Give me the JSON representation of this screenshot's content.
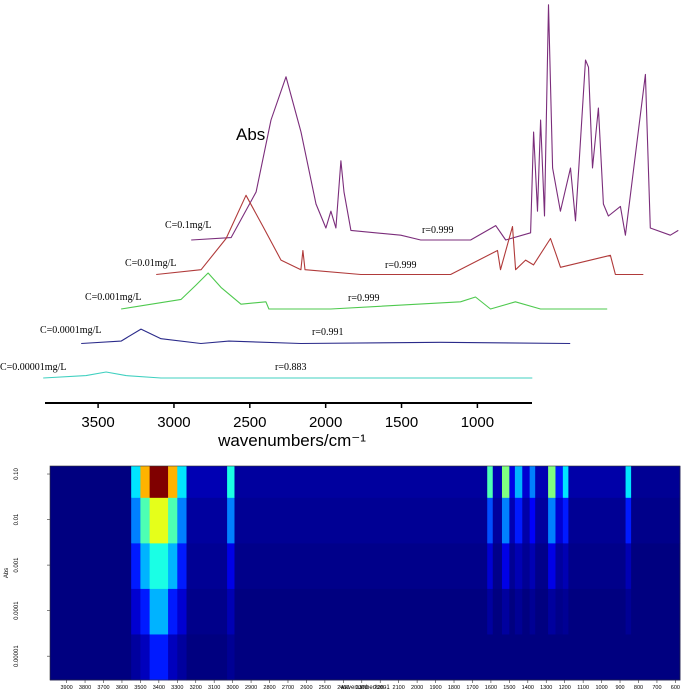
{
  "chart_data": [
    {
      "type": "waterfall",
      "axis_label": "Abs",
      "xlabel": "wavenumbers/cm⁻¹",
      "xlim": [
        3850,
        640
      ],
      "xticks": [
        3500,
        3000,
        2500,
        2000,
        1500,
        1000
      ],
      "ylim": [
        0,
        1
      ],
      "series": [
        {
          "name": "C=0.1mg/L",
          "annotation": "r=0.999",
          "color": "#7b2d7b",
          "x": [
            3862,
            3599,
            3434,
            3336,
            3237,
            3138,
            3039,
            2974,
            2941,
            2908,
            2875,
            2855,
            2809,
            2480,
            2349,
            2020,
            1855,
            1789,
            1625,
            1605,
            1579,
            1559,
            1533,
            1507,
            1480,
            1428,
            1362,
            1329,
            1263,
            1243,
            1217,
            1178,
            1145,
            1112,
            1033,
            1000,
            868,
            836,
            704,
            651
          ],
          "values": [
            0,
            0.01,
            0.2,
            0.5,
            0.68,
            0.45,
            0.15,
            0.05,
            0.12,
            0.05,
            0.33,
            0.2,
            0.04,
            0.02,
            0,
            0,
            0.06,
            0,
            0.03,
            0.45,
            0.12,
            0.5,
            0.1,
            0.98,
            0.3,
            0.12,
            0.3,
            0.08,
            0.75,
            0.72,
            0.3,
            0.55,
            0.15,
            0.1,
            0.14,
            0.02,
            0.69,
            0.05,
            0.02,
            0.04
          ]
        },
        {
          "name": "C=0.01mg/L",
          "annotation": "r=0.999",
          "color": "#b03a3a",
          "x": [
            3849,
            3553,
            3388,
            3257,
            3145,
            3026,
            2895,
            2882,
            2868,
            2500,
            1908,
            1599,
            1579,
            1500,
            1480,
            1414,
            1362,
            1250,
            1211,
            1184,
            855,
            822,
            638
          ],
          "values": [
            0,
            0.02,
            0.15,
            0.33,
            0.2,
            0.06,
            0.02,
            0.1,
            0.02,
            0,
            0,
            0.1,
            0.02,
            0.2,
            0.02,
            0.06,
            0.04,
            0.15,
            0.08,
            0.03,
            0.08,
            0,
            0
          ]
        },
        {
          "name": "C=0.001mg/L",
          "annotation": "r=0.999",
          "color": "#4ec94e",
          "x": [
            3836,
            3441,
            3342,
            3263,
            3178,
            3046,
            2882,
            2862,
            2454,
            1599,
            1500,
            1401,
            1237,
            1072,
            632
          ],
          "values": [
            0,
            0.04,
            0.1,
            0.15,
            0.09,
            0.02,
            0.03,
            0,
            0,
            0.03,
            0.05,
            0,
            0.03,
            0,
            0
          ]
        },
        {
          "name": "C=0.0001mg/L",
          "annotation": "r=0.991",
          "color": "#2a2a8a",
          "x": [
            3855,
            3592,
            3461,
            3329,
            3066,
            2882,
            2408,
            1487,
            632
          ],
          "values": [
            0,
            0.01,
            0.06,
            0.02,
            0,
            0.01,
            0,
            0.005,
            0
          ]
        },
        {
          "name": "C=0.00001mg/L",
          "annotation": "r=0.883",
          "color": "#40d0c0",
          "x": [
            3862,
            3579,
            3447,
            3316,
            3086,
            638
          ],
          "values": [
            0,
            0.01,
            0.025,
            0.01,
            0,
            0
          ]
        }
      ]
    },
    {
      "type": "heatmap",
      "ylabel": "Abs",
      "xlabel": "wavenumber/cm-1",
      "colormap": "jet",
      "xlim": [
        3990,
        575
      ],
      "xticks": [
        3900,
        3800,
        3700,
        3600,
        3500,
        3400,
        3300,
        3200,
        3100,
        3000,
        2900,
        2800,
        2700,
        2600,
        2500,
        2400,
        2300,
        2200,
        2100,
        2000,
        1900,
        1800,
        1700,
        1600,
        1500,
        1400,
        1300,
        1200,
        1100,
        1000,
        900,
        800,
        700,
        600
      ],
      "ylim": [
        3e-06,
        0.15
      ],
      "log_y": true,
      "yticks": [
        {
          "value": 0.1,
          "label": "0.10"
        },
        0.01,
        0.001,
        0.0001,
        1e-05
      ],
      "zlim": [
        0,
        1
      ],
      "bins": [
        3990,
        3550,
        3500,
        3450,
        3350,
        3300,
        3250,
        3030,
        2990,
        1620,
        1590,
        1540,
        1500,
        1470,
        1430,
        1390,
        1360,
        1290,
        1250,
        1210,
        1180,
        870,
        840,
        575
      ],
      "ybins": [
        0.15,
        0.03,
        0.003,
        0.0003,
        3e-05,
        3e-06
      ],
      "z": [
        [
          0,
          0.35,
          0.7,
          1.0,
          0.7,
          0.35,
          0.05,
          0.4,
          0.03,
          0.45,
          0.05,
          0.5,
          0.1,
          0.3,
          0.08,
          0.25,
          0.05,
          0.5,
          0.15,
          0.35,
          0.04,
          0.35,
          0.02
        ],
        [
          0,
          0.25,
          0.45,
          0.6,
          0.45,
          0.25,
          0.03,
          0.25,
          0.02,
          0.2,
          0.03,
          0.25,
          0.05,
          0.15,
          0.04,
          0.12,
          0.03,
          0.25,
          0.08,
          0.15,
          0.02,
          0.15,
          0.01
        ],
        [
          0,
          0.15,
          0.3,
          0.4,
          0.3,
          0.15,
          0.02,
          0.1,
          0.01,
          0.08,
          0.01,
          0.1,
          0.02,
          0.05,
          0.02,
          0.05,
          0.01,
          0.1,
          0.03,
          0.05,
          0.01,
          0.05,
          0
        ],
        [
          0,
          0.08,
          0.15,
          0.3,
          0.15,
          0.08,
          0.01,
          0.05,
          0,
          0.03,
          0,
          0.03,
          0,
          0.02,
          0,
          0.02,
          0,
          0.03,
          0.01,
          0.02,
          0,
          0.02,
          0
        ],
        [
          0,
          0.03,
          0.06,
          0.15,
          0.06,
          0.03,
          0,
          0.02,
          0,
          0,
          0,
          0,
          0,
          0,
          0,
          0,
          0,
          0,
          0,
          0,
          0,
          0,
          0
        ]
      ]
    }
  ]
}
